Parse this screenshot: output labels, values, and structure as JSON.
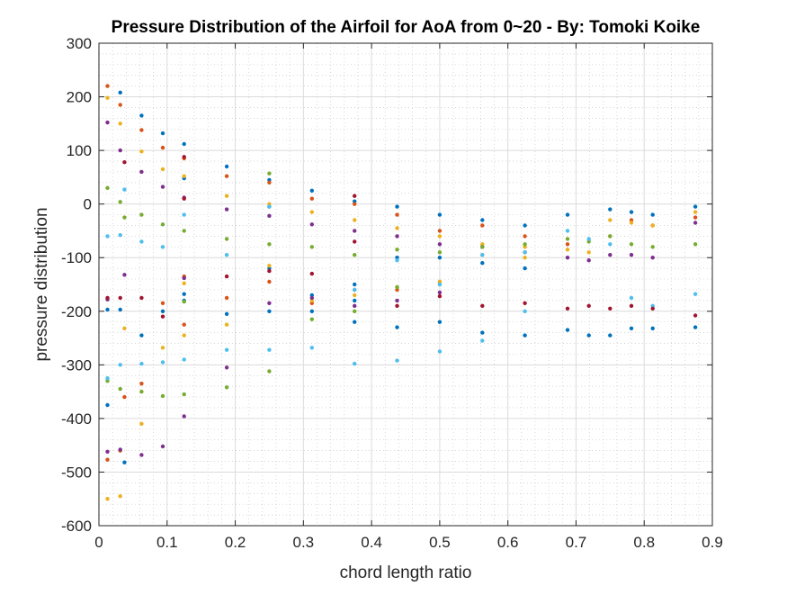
{
  "chart_data": {
    "type": "scatter",
    "title": "Pressure Distribution of the Airfoil for AoA from 0~20 - By: Tomoki Koike",
    "xlabel": "chord length ratio",
    "ylabel": "pressure distribution",
    "xlim": [
      0,
      0.9
    ],
    "ylim": [
      -600,
      300
    ],
    "xticks": [
      "0",
      "0.1",
      "0.2",
      "0.3",
      "0.4",
      "0.5",
      "0.6",
      "0.7",
      "0.8",
      "0.9"
    ],
    "yticks": [
      "300",
      "200",
      "100",
      "0",
      "-100",
      "-200",
      "-300",
      "-400",
      "-500",
      "-600"
    ],
    "grid": true,
    "minor_grid": true,
    "legend": "none",
    "colors": [
      "#0072BD",
      "#D95319",
      "#EDB120",
      "#7E2F8E",
      "#77AC30",
      "#4DBEEE",
      "#A2142F"
    ],
    "series": [
      {
        "x": [
          0.0125,
          0.0125,
          0.03125,
          0.03125,
          0.0375,
          0.0625,
          0.0625,
          0.09375,
          0.09375,
          0.125,
          0.125,
          0.125,
          0.125,
          0.1875,
          0.1875,
          0.25,
          0.25,
          0.25,
          0.25,
          0.3125,
          0.3125,
          0.3125,
          0.375,
          0.375,
          0.375,
          0.375,
          0.4375,
          0.4375,
          0.4375,
          0.5,
          0.5,
          0.5,
          0.5625,
          0.5625,
          0.5625,
          0.625,
          0.625,
          0.625,
          0.6875,
          0.6875,
          0.71875,
          0.75,
          0.75,
          0.78125,
          0.78125,
          0.8125,
          0.8125,
          0.875,
          0.875
        ],
        "y": [
          -197,
          -375,
          208,
          -197,
          -482,
          165,
          -245,
          132,
          -200,
          112,
          48,
          -168,
          -180,
          70,
          -205,
          45,
          -120,
          -200,
          -5,
          25,
          -170,
          -200,
          5,
          -180,
          -150,
          -220,
          -5,
          -100,
          -230,
          -20,
          -100,
          -220,
          -30,
          -110,
          -240,
          -40,
          -120,
          -245,
          -20,
          -235,
          -245,
          -10,
          -245,
          -15,
          -232,
          -20,
          -232,
          -5,
          -230
        ]
      },
      {
        "x": [
          0.0125,
          0.0125,
          0.03125,
          0.03125,
          0.0375,
          0.0625,
          0.0625,
          0.09375,
          0.09375,
          0.125,
          0.125,
          0.125,
          0.1875,
          0.1875,
          0.25,
          0.25,
          0.3125,
          0.3125,
          0.375,
          0.375,
          0.4375,
          0.4375,
          0.5,
          0.5,
          0.5625,
          0.625,
          0.6875,
          0.75,
          0.78125,
          0.8125,
          0.875
        ],
        "y": [
          220,
          -477,
          185,
          -460,
          -360,
          138,
          -335,
          105,
          -185,
          85,
          -135,
          -225,
          52,
          -175,
          40,
          -145,
          10,
          -185,
          0,
          -160,
          -20,
          -160,
          -50,
          -145,
          -40,
          -60,
          -75,
          -60,
          -30,
          -40,
          -25
        ]
      },
      {
        "x": [
          0.0125,
          0.0125,
          0.03125,
          0.03125,
          0.0375,
          0.0625,
          0.0625,
          0.09375,
          0.09375,
          0.125,
          0.125,
          0.125,
          0.1875,
          0.1875,
          0.25,
          0.25,
          0.3125,
          0.3125,
          0.375,
          0.375,
          0.4375,
          0.4375,
          0.5,
          0.5,
          0.5625,
          0.5625,
          0.625,
          0.625,
          0.6875,
          0.71875,
          0.75,
          0.78125,
          0.8125,
          0.875
        ],
        "y": [
          198,
          -550,
          150,
          -545,
          -232,
          98,
          -410,
          65,
          -268,
          52,
          -148,
          -245,
          15,
          -225,
          0,
          -115,
          -15,
          -180,
          -30,
          -170,
          -45,
          -155,
          -60,
          -145,
          -75,
          -95,
          -80,
          -100,
          -85,
          -90,
          -30,
          -35,
          -40,
          -15
        ]
      },
      {
        "x": [
          0.0125,
          0.0125,
          0.0125,
          0.03125,
          0.03125,
          0.0375,
          0.0625,
          0.0625,
          0.09375,
          0.09375,
          0.125,
          0.125,
          0.125,
          0.1875,
          0.1875,
          0.25,
          0.25,
          0.3125,
          0.3125,
          0.375,
          0.375,
          0.4375,
          0.4375,
          0.5,
          0.5,
          0.5625,
          0.625,
          0.6875,
          0.71875,
          0.75,
          0.78125,
          0.8125,
          0.875
        ],
        "y": [
          152,
          -178,
          -462,
          100,
          -458,
          -132,
          60,
          -468,
          32,
          -452,
          12,
          -138,
          -396,
          -10,
          -305,
          -22,
          -185,
          -38,
          -175,
          -50,
          -190,
          -60,
          -180,
          -75,
          -165,
          -80,
          -90,
          -100,
          -105,
          -95,
          -95,
          -100,
          -35
        ]
      },
      {
        "x": [
          0.0125,
          0.0125,
          0.03125,
          0.03125,
          0.0375,
          0.0625,
          0.0625,
          0.09375,
          0.09375,
          0.125,
          0.125,
          0.125,
          0.1875,
          0.1875,
          0.25,
          0.25,
          0.25,
          0.3125,
          0.3125,
          0.375,
          0.375,
          0.4375,
          0.4375,
          0.5,
          0.5,
          0.5625,
          0.625,
          0.6875,
          0.71875,
          0.75,
          0.78125,
          0.8125,
          0.875
        ],
        "y": [
          30,
          -330,
          4,
          -345,
          -25,
          -20,
          -350,
          -38,
          -358,
          -50,
          -182,
          -355,
          -65,
          -342,
          57,
          -75,
          -312,
          -80,
          -215,
          -95,
          -200,
          -85,
          -155,
          -90,
          -150,
          -80,
          -75,
          -65,
          -70,
          -60,
          -75,
          -80,
          -75
        ]
      },
      {
        "x": [
          0.0125,
          0.0125,
          0.03125,
          0.03125,
          0.0375,
          0.0625,
          0.0625,
          0.09375,
          0.09375,
          0.125,
          0.125,
          0.1875,
          0.1875,
          0.25,
          0.25,
          0.3125,
          0.375,
          0.375,
          0.4375,
          0.4375,
          0.5,
          0.5,
          0.5625,
          0.5625,
          0.625,
          0.625,
          0.6875,
          0.71875,
          0.75,
          0.78125,
          0.8125,
          0.875
        ],
        "y": [
          -60,
          -325,
          -58,
          -300,
          27,
          -70,
          -298,
          -80,
          -295,
          -20,
          -290,
          -95,
          -272,
          -5,
          -272,
          -268,
          -160,
          -298,
          -105,
          -292,
          -150,
          -275,
          -95,
          -255,
          -90,
          -200,
          -50,
          -65,
          -75,
          -175,
          -190,
          -168
        ]
      },
      {
        "x": [
          0.0125,
          0.03125,
          0.0375,
          0.0625,
          0.09375,
          0.125,
          0.125,
          0.1875,
          0.25,
          0.3125,
          0.375,
          0.375,
          0.4375,
          0.5,
          0.5625,
          0.625,
          0.6875,
          0.71875,
          0.75,
          0.78125,
          0.8125,
          0.875
        ],
        "y": [
          -175,
          -175,
          78,
          -175,
          -210,
          88,
          10,
          -135,
          -125,
          -130,
          15,
          -70,
          -190,
          -172,
          -190,
          -185,
          -195,
          -190,
          -195,
          -190,
          -195,
          -208
        ]
      }
    ]
  }
}
